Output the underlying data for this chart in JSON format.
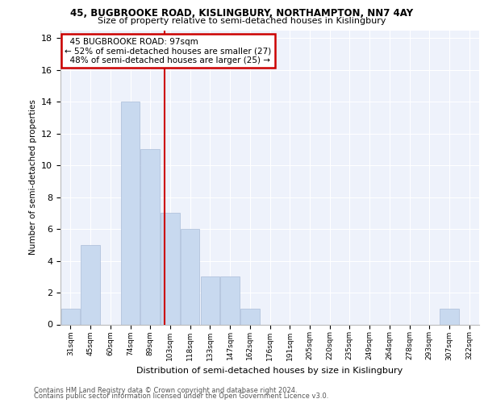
{
  "title1": "45, BUGBROOKE ROAD, KISLINGBURY, NORTHAMPTON, NN7 4AY",
  "title2": "Size of property relative to semi-detached houses in Kislingbury",
  "xlabel": "Distribution of semi-detached houses by size in Kislingbury",
  "ylabel": "Number of semi-detached properties",
  "categories": [
    "31sqm",
    "45sqm",
    "60sqm",
    "74sqm",
    "89sqm",
    "103sqm",
    "118sqm",
    "133sqm",
    "147sqm",
    "162sqm",
    "176sqm",
    "191sqm",
    "205sqm",
    "220sqm",
    "235sqm",
    "249sqm",
    "264sqm",
    "278sqm",
    "293sqm",
    "307sqm",
    "322sqm"
  ],
  "values": [
    1,
    5,
    0,
    14,
    11,
    7,
    6,
    3,
    3,
    1,
    0,
    0,
    0,
    0,
    0,
    0,
    0,
    0,
    0,
    1,
    0
  ],
  "bar_color": "#c8d9ef",
  "bar_edge_color": "#aabcd8",
  "property_label": "45 BUGBROOKE ROAD: 97sqm",
  "smaller_pct": 52,
  "smaller_count": 27,
  "larger_pct": 48,
  "larger_count": 25,
  "vline_color": "#cc0000",
  "vline_x": 4.7,
  "ylim": [
    0,
    18.5
  ],
  "yticks": [
    0,
    2,
    4,
    6,
    8,
    10,
    12,
    14,
    16,
    18
  ],
  "footnote1": "Contains HM Land Registry data © Crown copyright and database right 2024.",
  "footnote2": "Contains public sector information licensed under the Open Government Licence v3.0.",
  "bg_color": "#eef2fb",
  "grid_color": "#ffffff"
}
